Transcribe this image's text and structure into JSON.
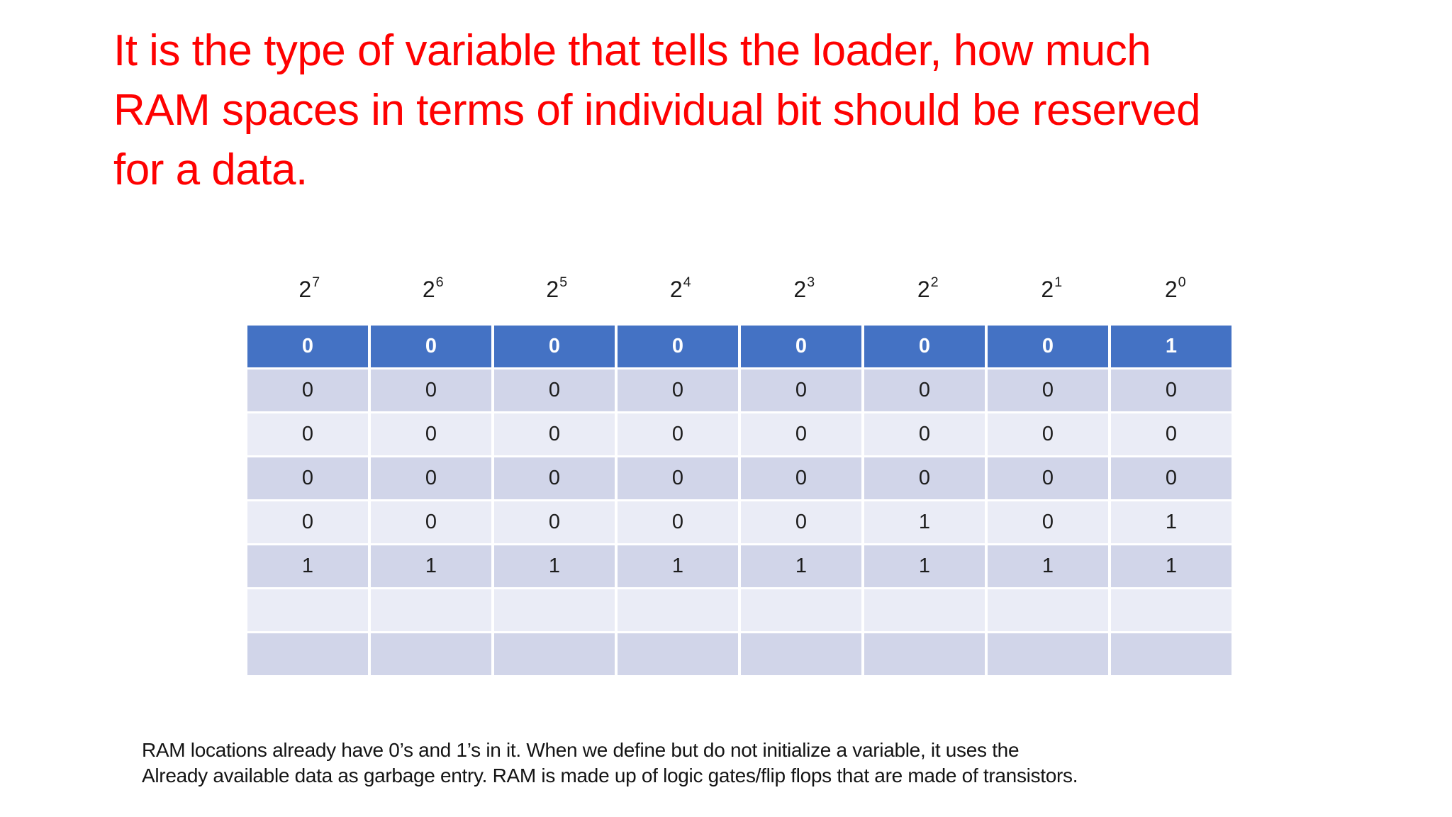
{
  "slide": {
    "title_lines": [
      "It is the type of variable that tells the loader, how much",
      "RAM spaces in terms of individual bit should be reserved",
      "for a data."
    ],
    "title_color": "#fe0101"
  },
  "table": {
    "column_headers": [
      {
        "base": "2",
        "exponent": "7"
      },
      {
        "base": "2",
        "exponent": "6"
      },
      {
        "base": "2",
        "exponent": "5"
      },
      {
        "base": "2",
        "exponent": "4"
      },
      {
        "base": "2",
        "exponent": "3"
      },
      {
        "base": "2",
        "exponent": "2"
      },
      {
        "base": "2",
        "exponent": "1"
      },
      {
        "base": "2",
        "exponent": "0"
      }
    ],
    "header_row_values": [
      "0",
      "0",
      "0",
      "0",
      "0",
      "0",
      "0",
      "1"
    ],
    "body_rows": [
      [
        "0",
        "0",
        "0",
        "0",
        "0",
        "0",
        "0",
        "0"
      ],
      [
        "0",
        "0",
        "0",
        "0",
        "0",
        "0",
        "0",
        "0"
      ],
      [
        "0",
        "0",
        "0",
        "0",
        "0",
        "0",
        "0",
        "0"
      ],
      [
        "0",
        "0",
        "0",
        "0",
        "0",
        "1",
        "0",
        "1"
      ],
      [
        "1",
        "1",
        "1",
        "1",
        "1",
        "1",
        "1",
        "1"
      ],
      [
        "",
        "",
        "",
        "",
        "",
        "",
        "",
        ""
      ],
      [
        "",
        "",
        "",
        "",
        "",
        "",
        "",
        ""
      ]
    ],
    "colors": {
      "header_bg": "#4472c4",
      "header_text": "#ffffff",
      "band_dark": "#d1d5e9",
      "band_light": "#eaecf6",
      "digit_text": "#1c1c1c"
    }
  },
  "footer": {
    "line1": "RAM locations already have 0’s and 1’s in it. When we define but do not initialize a variable, it uses the",
    "line2": "Already available data as garbage entry. RAM is made up of logic gates/flip flops that are made of transistors."
  }
}
